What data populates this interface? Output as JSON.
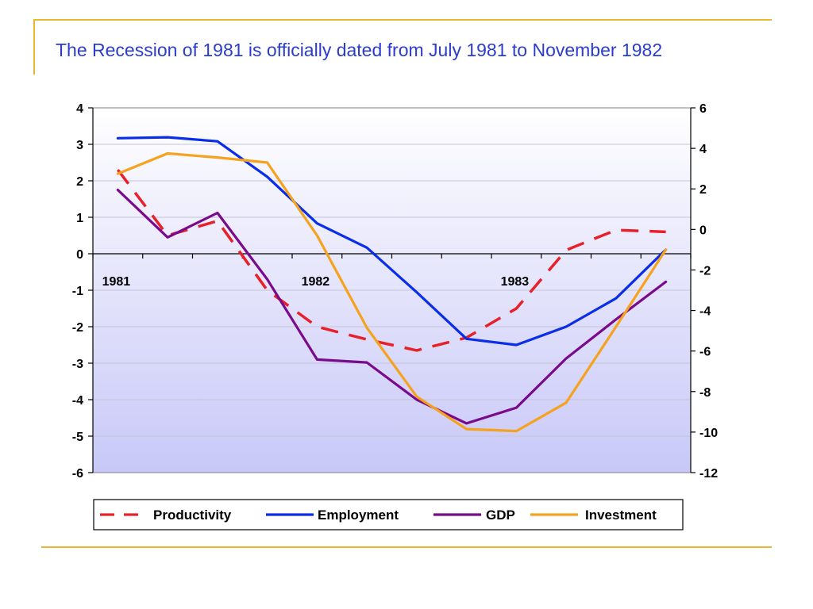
{
  "title": "The Recession of 1981 is officially dated from July 1981 to November 1982",
  "chart_data": {
    "type": "line",
    "x_labels": [
      "1981",
      "1982",
      "1983"
    ],
    "x_label_index": [
      0,
      4,
      8
    ],
    "n_points": 12,
    "y_left": {
      "min": -6,
      "max": 4,
      "ticks": [
        4,
        3,
        2,
        1,
        0,
        -1,
        -2,
        -3,
        -4,
        -5,
        -6
      ]
    },
    "y_right": {
      "min": -12,
      "max": 6,
      "ticks": [
        6,
        4,
        2,
        0,
        -2,
        -4,
        -6,
        -8,
        -10,
        -12
      ]
    },
    "grid": true,
    "legend_position": "bottom",
    "series": [
      {
        "name": "Productivity",
        "axis": "left",
        "color": "#e8202a",
        "dash": true,
        "values": [
          2.3,
          0.5,
          0.9,
          -1.0,
          -2.0,
          -2.35,
          -2.65,
          -2.3,
          -1.5,
          0.1,
          0.65,
          0.6
        ]
      },
      {
        "name": "Employment",
        "axis": "right",
        "color": "#0a2ee8",
        "dash": false,
        "values": [
          4.5,
          4.55,
          4.35,
          2.6,
          0.3,
          -0.9,
          -3.1,
          -5.4,
          -5.7,
          -4.8,
          -3.4,
          -1.0
        ]
      },
      {
        "name": "GDP",
        "axis": "left",
        "color": "#7a0a8c",
        "dash": false,
        "values": [
          1.75,
          0.45,
          1.12,
          -0.7,
          -2.9,
          -2.98,
          -4.0,
          -4.65,
          -4.22,
          -2.87,
          -1.8,
          -0.77
        ]
      },
      {
        "name": "Investment",
        "axis": "right",
        "color": "#f5a21e",
        "dash": false,
        "values": [
          2.75,
          3.75,
          3.55,
          3.3,
          -0.3,
          -4.85,
          -8.25,
          -9.85,
          -9.95,
          -8.55,
          -4.8,
          -1.0
        ]
      }
    ]
  }
}
